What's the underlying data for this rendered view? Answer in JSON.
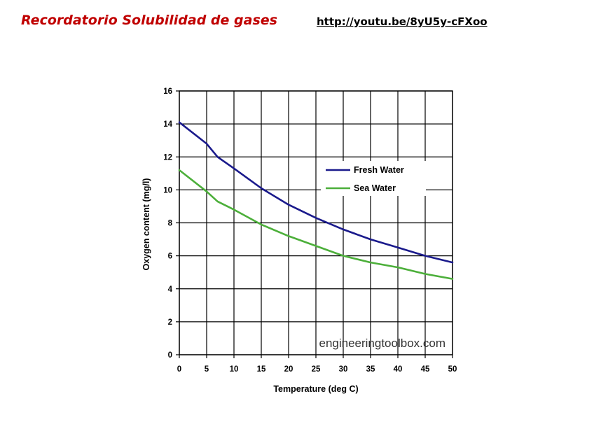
{
  "header": {
    "title": "Recordatorio Solubilidad de gases",
    "link": "http://youtu.be/8yU5y-cFXoo"
  },
  "chart_data": {
    "type": "line",
    "xlabel": "Temperature (deg C)",
    "ylabel": "Oxygen content (mg/l)",
    "xlim": [
      0,
      50
    ],
    "ylim": [
      0,
      16
    ],
    "xticks": [
      "0",
      "5",
      "10",
      "15",
      "20",
      "25",
      "30",
      "35",
      "40",
      "45",
      "50"
    ],
    "yticks": [
      "0",
      "2",
      "4",
      "6",
      "8",
      "10",
      "12",
      "14",
      "16"
    ],
    "grid": true,
    "legend_position": "right",
    "watermark": "engineeringtoolbox.com",
    "x": [
      0,
      5,
      7,
      10,
      15,
      20,
      25,
      30,
      35,
      40,
      45,
      50
    ],
    "series": [
      {
        "name": "Fresh Water",
        "color": "#1a1a8c",
        "values": [
          14.1,
          12.8,
          12.0,
          11.3,
          10.1,
          9.1,
          8.3,
          7.6,
          7.0,
          6.5,
          6.0,
          5.6
        ]
      },
      {
        "name": "Sea Water",
        "color": "#4caf3a",
        "values": [
          11.2,
          9.9,
          9.3,
          8.8,
          7.9,
          7.2,
          6.6,
          6.0,
          5.6,
          5.3,
          4.9,
          4.6
        ]
      }
    ]
  }
}
